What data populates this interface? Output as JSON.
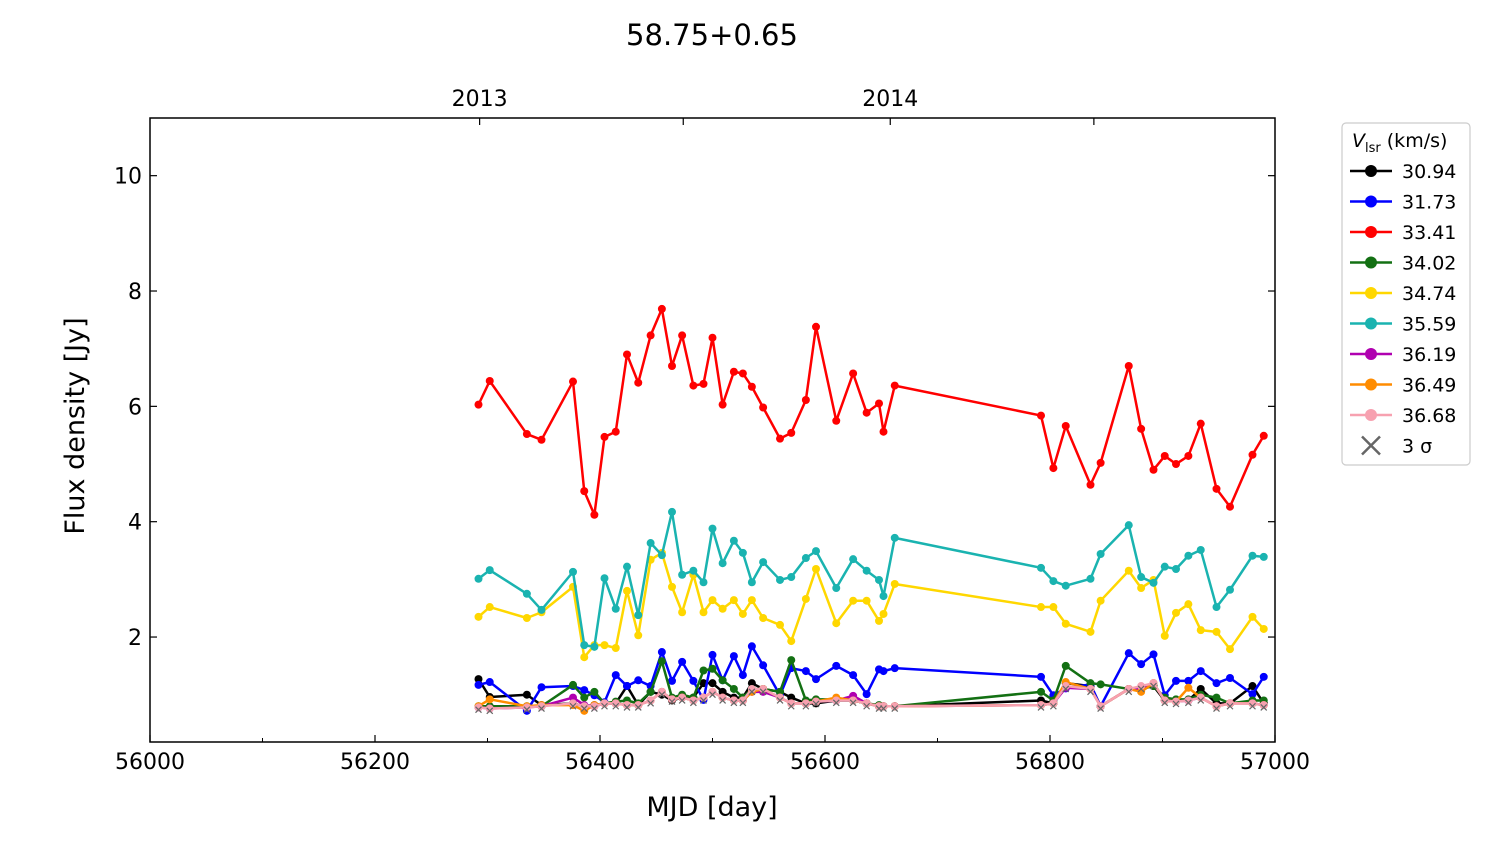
{
  "chart_data": {
    "type": "line",
    "title": "58.75+0.65",
    "xlabel": "MJD [day]",
    "ylabel": "Flux density [Jy]",
    "xlim": [
      56000,
      57000
    ],
    "ylim": [
      0.18,
      11
    ],
    "xticks": [
      56000,
      56200,
      56400,
      56600,
      56800,
      57000
    ],
    "xtick_labels": [
      "56000",
      "56200",
      "56400",
      "56600",
      "56800",
      "57000"
    ],
    "yticks": [
      2,
      4,
      6,
      8,
      10
    ],
    "ytick_labels": [
      "2",
      "4",
      "6",
      "8",
      "10"
    ],
    "top_axis": {
      "ticks": [
        56293,
        56474,
        56658,
        56839
      ],
      "labels": [
        {
          "value": 56293,
          "text": "2013"
        },
        {
          "value": 56658,
          "text": "2014"
        }
      ]
    },
    "legend": {
      "title_main": "V",
      "title_sub": "lsr",
      "title_unit": " (km/s)",
      "placement": "outside-right-top",
      "sigma_label": "3 σ"
    },
    "x": [
      56292,
      56302,
      56335,
      56348,
      56376,
      56386,
      56395,
      56404,
      56414,
      56424,
      56434,
      56445,
      56455,
      56464,
      56473,
      56483,
      56492,
      56500,
      56509,
      56519,
      56527,
      56535,
      56545,
      56560,
      56570,
      56583,
      56592,
      56610,
      56625,
      56637,
      56648,
      56652,
      56662,
      56792,
      56803,
      56814,
      56836,
      56845,
      56870,
      56881,
      56892,
      56902,
      56912,
      56923,
      56934,
      56948,
      56960,
      56980,
      56990
    ],
    "series": [
      {
        "name": "30.94",
        "color": "#000000",
        "values": [
          1.27,
          0.96,
          1.0,
          0.82,
          0.85,
          0.8,
          0.82,
          0.85,
          0.85,
          1.15,
          0.82,
          1.05,
          1.0,
          0.9,
          0.95,
          0.95,
          1.2,
          1.2,
          1.05,
          0.95,
          0.95,
          1.2,
          1.1,
          1.05,
          0.95,
          0.85,
          0.85,
          0.9,
          0.9,
          0.85,
          0.8,
          0.8,
          0.8,
          0.9,
          0.85,
          1.2,
          1.15,
          0.8,
          1.1,
          1.1,
          1.15,
          0.9,
          0.9,
          0.9,
          1.1,
          0.85,
          0.85,
          1.15,
          0.85
        ]
      },
      {
        "name": "31.73",
        "color": "#0000ff",
        "values": [
          1.17,
          1.22,
          0.72,
          1.13,
          1.15,
          1.08,
          0.99,
          0.87,
          1.34,
          1.15,
          1.25,
          1.15,
          1.74,
          1.24,
          1.57,
          1.24,
          0.91,
          1.69,
          1.25,
          1.67,
          1.34,
          1.84,
          1.51,
          0.99,
          1.46,
          1.41,
          1.27,
          1.5,
          1.34,
          1.01,
          1.44,
          1.41,
          1.46,
          1.31,
          0.99,
          1.11,
          1.18,
          0.8,
          1.72,
          1.53,
          1.7,
          0.99,
          1.24,
          1.24,
          1.41,
          1.2,
          1.29,
          1.01,
          1.31
        ]
      },
      {
        "name": "33.41",
        "color": "#ff0000",
        "values": [
          6.03,
          6.44,
          5.52,
          5.42,
          6.43,
          4.53,
          4.12,
          5.47,
          5.56,
          6.9,
          6.41,
          7.23,
          7.69,
          6.7,
          7.23,
          6.36,
          6.39,
          7.19,
          6.03,
          6.6,
          6.57,
          6.34,
          5.98,
          5.44,
          5.54,
          6.11,
          7.38,
          5.75,
          6.57,
          5.89,
          6.05,
          5.56,
          6.36,
          5.84,
          4.93,
          5.66,
          4.64,
          5.02,
          6.7,
          5.61,
          4.9,
          5.14,
          5.0,
          5.14,
          5.7,
          4.57,
          4.26,
          5.16,
          5.49
        ]
      },
      {
        "name": "34.02",
        "color": "#137013",
        "values": [
          0.8,
          0.8,
          0.8,
          0.8,
          1.17,
          0.95,
          1.05,
          0.85,
          0.88,
          0.9,
          0.85,
          1.05,
          1.58,
          0.95,
          1.0,
          0.95,
          1.42,
          1.45,
          1.25,
          1.1,
          0.95,
          1.1,
          1.1,
          1.05,
          1.6,
          0.9,
          0.92,
          0.92,
          0.9,
          0.85,
          0.82,
          0.8,
          0.8,
          1.05,
          0.9,
          1.5,
          1.2,
          1.18,
          1.1,
          1.1,
          1.15,
          0.95,
          0.92,
          0.92,
          1.0,
          0.95,
          0.85,
          0.9,
          0.9
        ]
      },
      {
        "name": "34.74",
        "color": "#ffd700",
        "values": [
          2.35,
          2.52,
          2.33,
          2.43,
          2.87,
          1.65,
          1.86,
          1.86,
          1.81,
          2.8,
          2.03,
          3.34,
          3.46,
          2.87,
          2.43,
          3.08,
          2.43,
          2.64,
          2.49,
          2.64,
          2.4,
          2.64,
          2.33,
          2.21,
          1.93,
          2.66,
          3.18,
          2.24,
          2.63,
          2.63,
          2.28,
          2.4,
          2.92,
          2.52,
          2.52,
          2.23,
          2.09,
          2.63,
          3.15,
          2.85,
          2.99,
          2.02,
          2.42,
          2.57,
          2.12,
          2.09,
          1.79,
          2.35,
          2.14
        ]
      },
      {
        "name": "35.59",
        "color": "#1ab3b0",
        "values": [
          3.01,
          3.16,
          2.75,
          2.47,
          3.13,
          1.86,
          1.83,
          3.02,
          2.49,
          3.22,
          2.38,
          3.63,
          3.42,
          4.17,
          3.08,
          3.15,
          2.95,
          3.88,
          3.28,
          3.67,
          3.46,
          2.95,
          3.3,
          2.99,
          3.04,
          3.37,
          3.49,
          2.85,
          3.35,
          3.15,
          2.99,
          2.71,
          3.72,
          3.2,
          2.97,
          2.89,
          3.01,
          3.44,
          3.94,
          3.04,
          2.94,
          3.22,
          3.18,
          3.41,
          3.51,
          2.52,
          2.82,
          3.41,
          3.39
        ]
      },
      {
        "name": "36.19",
        "color": "#b000b0",
        "values": [
          0.78,
          0.76,
          0.78,
          0.8,
          0.95,
          0.82,
          0.8,
          0.85,
          0.85,
          0.82,
          0.82,
          0.9,
          1.05,
          0.92,
          0.95,
          0.9,
          0.95,
          1.05,
          0.95,
          0.9,
          0.9,
          1.05,
          1.05,
          0.95,
          0.85,
          0.85,
          0.88,
          0.9,
          0.98,
          0.85,
          0.8,
          0.8,
          0.8,
          0.82,
          0.85,
          1.12,
          1.1,
          0.8,
          1.1,
          1.1,
          1.2,
          0.9,
          0.88,
          0.9,
          0.95,
          0.8,
          0.85,
          0.85,
          0.82
        ]
      },
      {
        "name": "36.49",
        "color": "#ff8c00",
        "values": [
          0.8,
          0.92,
          0.8,
          0.82,
          0.82,
          0.72,
          0.82,
          0.85,
          0.85,
          0.82,
          0.82,
          0.9,
          1.05,
          0.92,
          0.95,
          0.9,
          0.95,
          1.05,
          0.95,
          0.9,
          0.9,
          1.05,
          1.1,
          0.95,
          0.85,
          0.85,
          0.88,
          0.95,
          0.9,
          0.85,
          0.8,
          0.8,
          0.8,
          0.82,
          0.85,
          1.22,
          1.1,
          0.8,
          1.1,
          1.05,
          1.2,
          0.9,
          0.88,
          1.12,
          0.95,
          0.8,
          0.85,
          0.85,
          0.82
        ]
      },
      {
        "name": "36.68",
        "color": "#f7a1b0",
        "values": [
          0.78,
          0.76,
          0.78,
          0.8,
          0.85,
          0.8,
          0.8,
          0.85,
          0.85,
          0.82,
          0.82,
          0.9,
          1.05,
          0.92,
          0.95,
          0.9,
          0.95,
          1.05,
          0.95,
          0.9,
          0.9,
          1.1,
          1.1,
          0.95,
          0.85,
          0.85,
          0.88,
          0.9,
          0.9,
          0.85,
          0.8,
          0.8,
          0.8,
          0.82,
          0.85,
          1.15,
          1.1,
          0.8,
          1.1,
          1.15,
          1.2,
          0.9,
          0.88,
          0.9,
          0.95,
          0.8,
          0.85,
          0.85,
          0.82
        ]
      }
    ],
    "sigma3": [
      0.74,
      0.72,
      0.74,
      0.76,
      0.8,
      0.76,
      0.76,
      0.8,
      0.8,
      0.78,
      0.78,
      0.85,
      1.0,
      0.88,
      0.9,
      0.86,
      0.9,
      1.0,
      0.9,
      0.86,
      0.86,
      1.05,
      1.05,
      0.9,
      0.8,
      0.8,
      0.84,
      0.86,
      0.86,
      0.8,
      0.76,
      0.76,
      0.76,
      0.78,
      0.8,
      1.1,
      1.05,
      0.76,
      1.05,
      1.1,
      1.15,
      0.86,
      0.84,
      0.86,
      0.9,
      0.76,
      0.8,
      0.8,
      0.78
    ],
    "grid": false
  }
}
